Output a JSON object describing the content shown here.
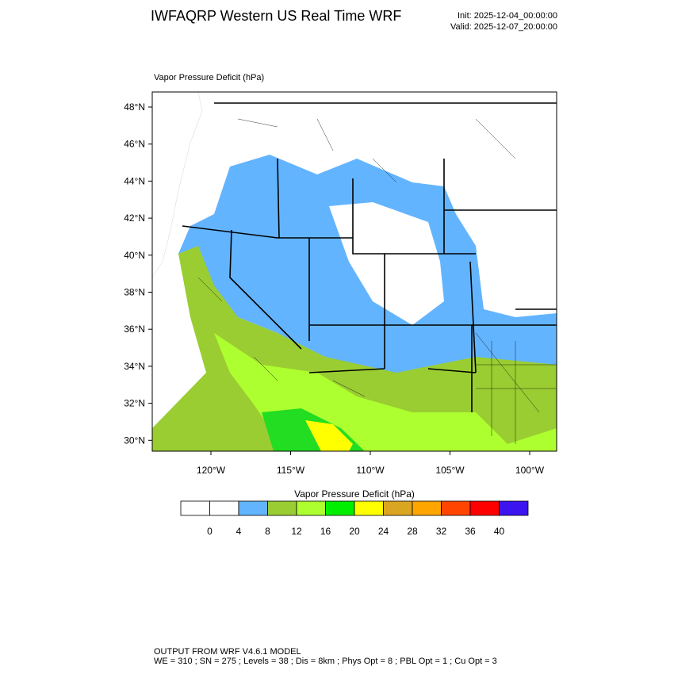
{
  "header": {
    "title": "IWFAQRP Western US Real Time WRF",
    "init": "Init: 2025-12-04_00:00:00",
    "valid": "Valid: 2025-12-07_20:00:00"
  },
  "map": {
    "field_label": "Vapor Pressure Deficit   (hPa)",
    "lat_labels": [
      "48°N",
      "46°N",
      "44°N",
      "42°N",
      "40°N",
      "38°N",
      "36°N",
      "34°N",
      "32°N",
      "30°N"
    ],
    "lon_labels": [
      "120°W",
      "115°W",
      "110°W",
      "105°W",
      "100°W"
    ]
  },
  "colorbar": {
    "title": "Vapor Pressure Deficit  (hPa)",
    "levels": [
      0,
      4,
      8,
      12,
      16,
      20,
      24,
      28,
      32,
      36,
      40
    ],
    "colors": [
      "#ffffff",
      "#ffffff",
      "#63b4ff",
      "#9acd32",
      "#adff2f",
      "#00ee00",
      "#ffff00",
      "#daa520",
      "#ffa500",
      "#ff4500",
      "#ff0000",
      "#3c14f0"
    ]
  },
  "footer": {
    "line1": "OUTPUT FROM WRF V4.6.1 MODEL",
    "line2": "WE = 310 ; SN = 275 ; Levels = 38 ; Dis = 8km ; Phys Opt = 8 ; PBL Opt = 1 ; Cu Opt = 3"
  }
}
